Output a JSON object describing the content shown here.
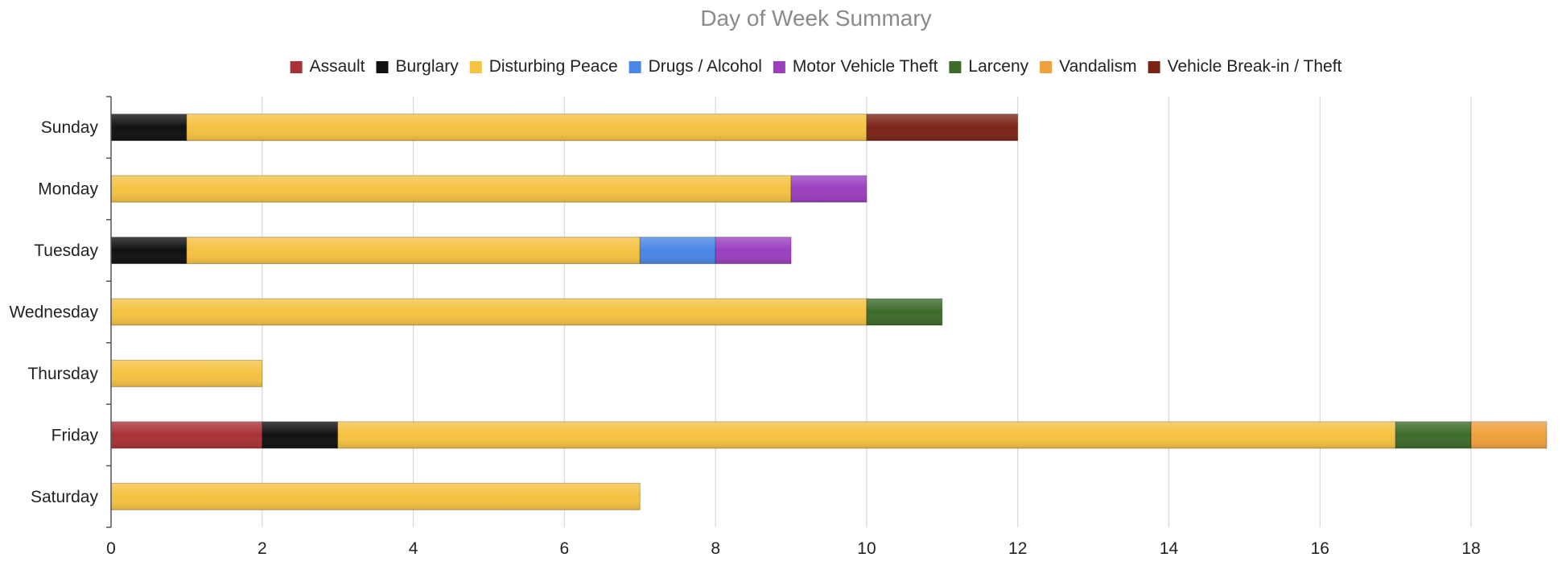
{
  "chart_data": {
    "type": "bar",
    "orientation": "horizontal",
    "stacked": true,
    "title": "Day of Week Summary",
    "xlabel": "",
    "ylabel": "",
    "categories": [
      "Sunday",
      "Monday",
      "Tuesday",
      "Wednesday",
      "Thursday",
      "Friday",
      "Saturday"
    ],
    "series": [
      {
        "name": "Assault",
        "color": "#a83236",
        "values": [
          0,
          0,
          0,
          0,
          0,
          2,
          0
        ]
      },
      {
        "name": "Burglary",
        "color": "#111111",
        "values": [
          1,
          0,
          1,
          0,
          0,
          1,
          0
        ]
      },
      {
        "name": "Disturbing Peace",
        "color": "#f5c242",
        "values": [
          9,
          9,
          6,
          10,
          2,
          14,
          7
        ]
      },
      {
        "name": "Drugs / Alcohol",
        "color": "#4a86e8",
        "values": [
          0,
          0,
          1,
          0,
          0,
          0,
          0
        ]
      },
      {
        "name": "Motor Vehicle Theft",
        "color": "#9b3fbf",
        "values": [
          0,
          1,
          1,
          0,
          0,
          0,
          0
        ]
      },
      {
        "name": "Larceny",
        "color": "#3d6b2a",
        "values": [
          0,
          0,
          0,
          1,
          0,
          1,
          0
        ]
      },
      {
        "name": "Vandalism",
        "color": "#f0a03c",
        "values": [
          0,
          0,
          0,
          0,
          0,
          1,
          0
        ]
      },
      {
        "name": "Vehicle Break-in / Theft",
        "color": "#7a2416",
        "values": [
          2,
          0,
          0,
          0,
          0,
          0,
          0
        ]
      }
    ],
    "xlim": [
      0,
      19
    ],
    "xticks": [
      0,
      2,
      4,
      6,
      8,
      10,
      12,
      14,
      16,
      18
    ],
    "grid": true,
    "legend_position": "top"
  }
}
